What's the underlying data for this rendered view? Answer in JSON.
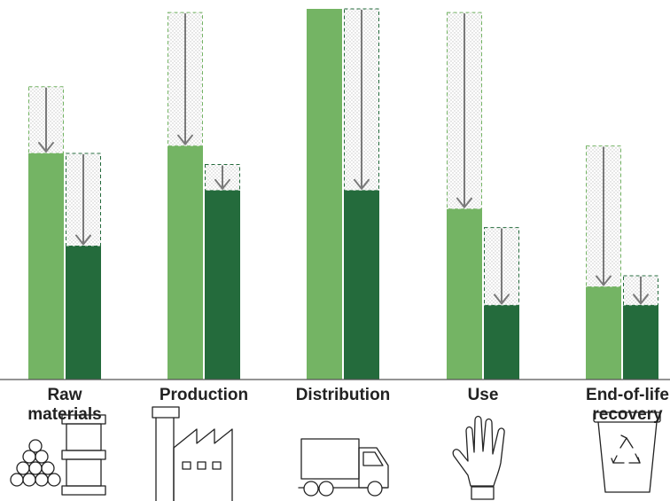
{
  "chart_data": {
    "type": "bar",
    "categories": [
      "Raw\nmaterials",
      "Production",
      "Distribution",
      "Use",
      "End-of-life\nrecovery"
    ],
    "series": [
      {
        "values": [
          61,
          63,
          100,
          46,
          25
        ],
        "before": [
          79,
          99,
          100,
          99,
          63
        ]
      },
      {
        "values": [
          36,
          51,
          51,
          20,
          20
        ],
        "before": [
          61,
          58,
          100,
          41,
          28
        ]
      }
    ],
    "ylim": [
      0,
      100
    ],
    "colors": {
      "light_bar": "#74b464",
      "dark_bar": "#246b3c",
      "dashed_outline_light": "#74b464",
      "dashed_outline_dark": "#246b3c",
      "arrow": "#7a7a7a",
      "baseline": "#555555"
    },
    "grid": false,
    "legend": "none"
  },
  "icons": [
    "stacked-pipes-and-barrel-icon",
    "factory-icon",
    "delivery-truck-icon",
    "raised-hand-icon",
    "recycle-bin-icon"
  ]
}
